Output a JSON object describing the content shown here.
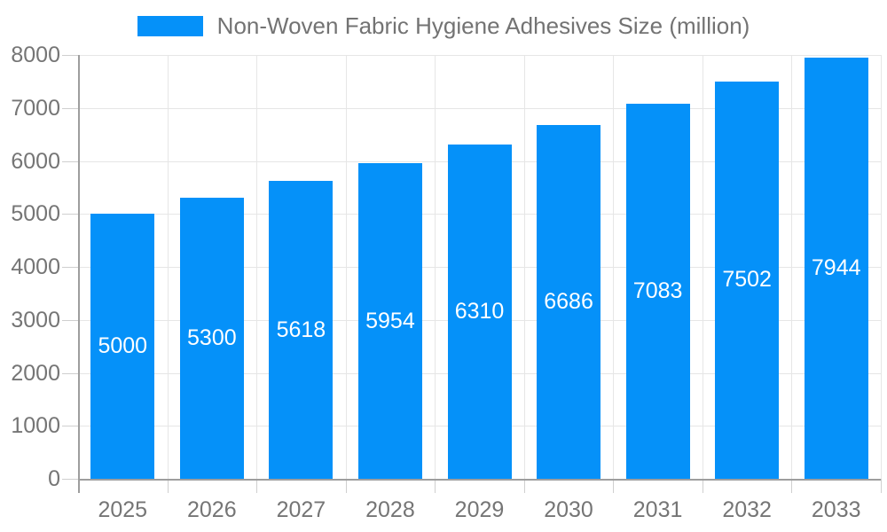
{
  "legend": {
    "label": "Non-Woven Fabric Hygiene Adhesives Size (million)"
  },
  "chart_data": {
    "type": "bar",
    "title": "Non-Woven Fabric Hygiene Adhesives Size (million)",
    "categories": [
      "2025",
      "2026",
      "2027",
      "2028",
      "2029",
      "2030",
      "2031",
      "2032",
      "2033"
    ],
    "values": [
      5000,
      5300,
      5618,
      5954,
      6310,
      6686,
      7083,
      7502,
      7944
    ],
    "xlabel": "",
    "ylabel": "",
    "ylim": [
      0,
      8000
    ],
    "yticks": [
      0,
      1000,
      2000,
      3000,
      4000,
      5000,
      6000,
      7000,
      8000
    ],
    "grid": true,
    "legend_position": "top",
    "bar_labels_inside": true,
    "colors": {
      "bar": "#0591f9",
      "bar_label": "#ffffff",
      "grid": "#e6e6e6",
      "tick": "#cfcfcf",
      "axis_line": "#9e9e9e",
      "axis_text": "#757575",
      "legend_text": "#737373",
      "background": "#ffffff"
    }
  }
}
